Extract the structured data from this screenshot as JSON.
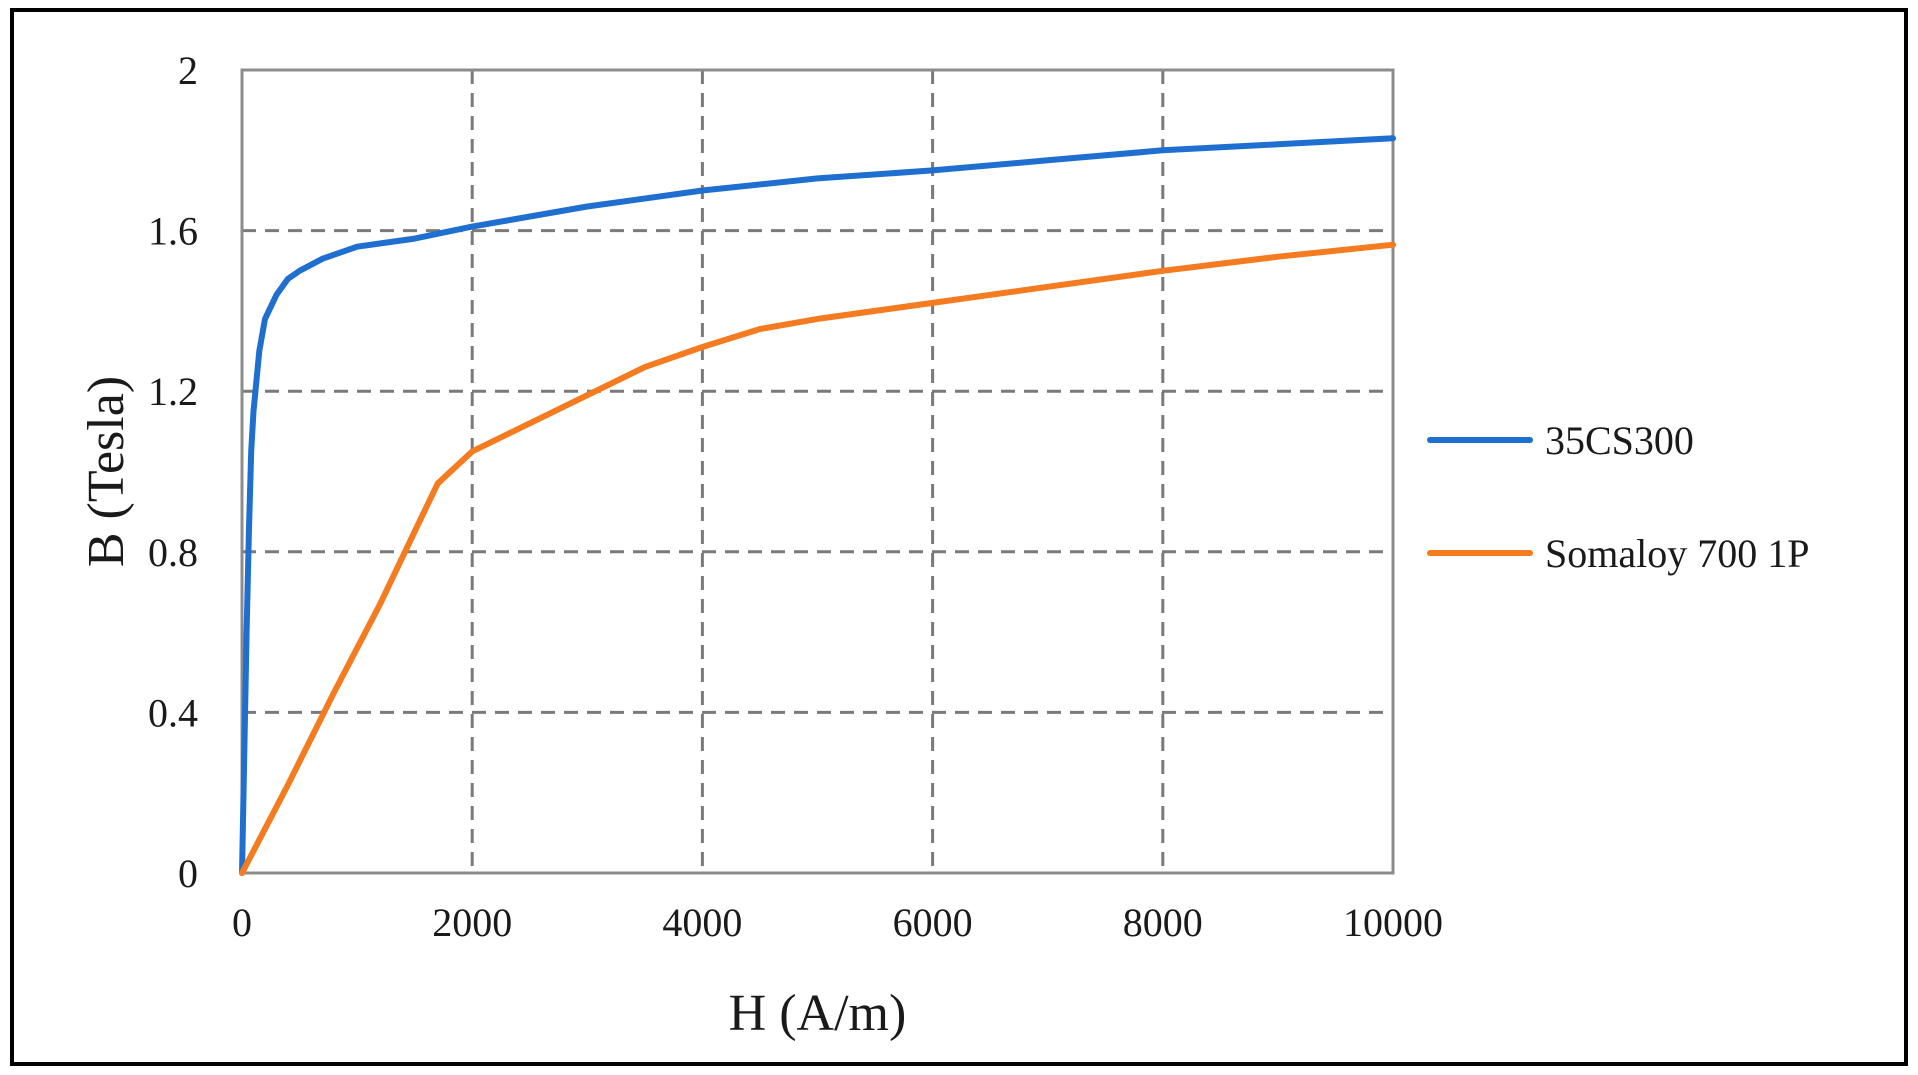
{
  "chart_data": {
    "type": "line",
    "xlabel": "H (A/m)",
    "ylabel": "B (Tesla)",
    "xlim": [
      0,
      10000
    ],
    "ylim": [
      0,
      2
    ],
    "x_ticks": [
      0,
      2000,
      4000,
      6000,
      8000,
      10000
    ],
    "y_ticks": [
      0,
      0.4,
      0.8,
      1.2,
      1.6,
      2
    ],
    "x_tick_labels": [
      "0",
      "2000",
      "4000",
      "6000",
      "8000",
      "10000"
    ],
    "y_tick_labels": [
      "0",
      "0.4",
      "0.8",
      "1.2",
      "1.6",
      "2"
    ],
    "grid": true,
    "legend_position": "right",
    "series": [
      {
        "name": "35CS300",
        "color": "#1f6fd1",
        "points": [
          [
            0,
            0
          ],
          [
            20,
            0.3
          ],
          [
            40,
            0.6
          ],
          [
            60,
            0.85
          ],
          [
            80,
            1.05
          ],
          [
            100,
            1.15
          ],
          [
            150,
            1.3
          ],
          [
            200,
            1.38
          ],
          [
            300,
            1.44
          ],
          [
            400,
            1.48
          ],
          [
            500,
            1.5
          ],
          [
            700,
            1.53
          ],
          [
            1000,
            1.56
          ],
          [
            1500,
            1.58
          ],
          [
            2000,
            1.61
          ],
          [
            3000,
            1.66
          ],
          [
            4000,
            1.7
          ],
          [
            5000,
            1.73
          ],
          [
            6000,
            1.75
          ],
          [
            7000,
            1.775
          ],
          [
            8000,
            1.8
          ],
          [
            9000,
            1.815
          ],
          [
            10000,
            1.83
          ]
        ]
      },
      {
        "name": "Somaloy 700 1P",
        "color": "#f47b20",
        "points": [
          [
            0,
            0
          ],
          [
            400,
            0.22
          ],
          [
            800,
            0.45
          ],
          [
            1200,
            0.67
          ],
          [
            1500,
            0.85
          ],
          [
            1700,
            0.97
          ],
          [
            2000,
            1.05
          ],
          [
            2500,
            1.12
          ],
          [
            3000,
            1.19
          ],
          [
            3500,
            1.26
          ],
          [
            4000,
            1.31
          ],
          [
            4500,
            1.355
          ],
          [
            5000,
            1.38
          ],
          [
            6000,
            1.42
          ],
          [
            7000,
            1.46
          ],
          [
            8000,
            1.5
          ],
          [
            9000,
            1.535
          ],
          [
            10000,
            1.565
          ]
        ]
      }
    ]
  }
}
